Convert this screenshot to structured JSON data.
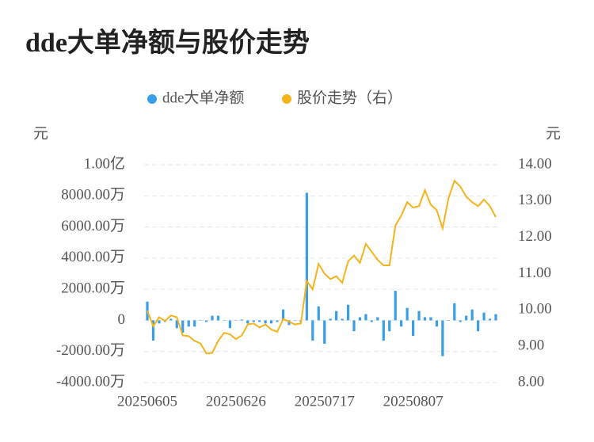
{
  "chart_data": {
    "type": "bar_line",
    "title": "dde大单净额与股价走势",
    "y_label": "元",
    "y2_label": "元",
    "categories": [
      "20250605",
      null,
      null,
      null,
      null,
      null,
      null,
      null,
      null,
      null,
      null,
      null,
      null,
      null,
      null,
      "20250626",
      null,
      null,
      null,
      null,
      null,
      null,
      null,
      null,
      null,
      null,
      null,
      null,
      null,
      null,
      "20250717",
      null,
      null,
      null,
      null,
      null,
      null,
      null,
      null,
      null,
      null,
      null,
      null,
      null,
      null,
      "20250807",
      null,
      null,
      null,
      null,
      null,
      null,
      null,
      null,
      null,
      null,
      null,
      null,
      null,
      null
    ],
    "series": [
      {
        "name": "dde大单净额",
        "color": "#3a9ee6",
        "type": "bar",
        "values": [
          1200,
          -1300,
          -200,
          -100,
          100,
          -500,
          -800,
          -400,
          -400,
          0,
          -100,
          300,
          300,
          0,
          -500,
          0,
          50,
          -200,
          -100,
          -100,
          -200,
          -200,
          -100,
          700,
          -300,
          0,
          -100,
          8200,
          -1300,
          900,
          -1500,
          100,
          600,
          100,
          1000,
          -700,
          200,
          400,
          -100,
          200,
          -1300,
          -700,
          1900,
          -400,
          800,
          -1000,
          600,
          200,
          200,
          -400,
          -2300,
          0,
          1100,
          -100,
          300,
          700,
          -700,
          500,
          100,
          400
        ]
      },
      {
        "name": "股价走势（右）",
        "color": "#f5b31c",
        "type": "line",
        "axis": "y2",
        "values": [
          9.98,
          9.55,
          9.8,
          9.7,
          9.85,
          9.8,
          9.3,
          9.28,
          9.15,
          9.08,
          8.8,
          8.82,
          9.15,
          9.37,
          9.33,
          9.2,
          9.3,
          9.6,
          9.63,
          9.52,
          9.6,
          9.46,
          9.4,
          9.75,
          9.68,
          9.6,
          9.63,
          10.8,
          10.57,
          11.27,
          11.0,
          10.85,
          10.93,
          10.75,
          11.34,
          11.5,
          11.3,
          11.82,
          11.6,
          11.38,
          11.23,
          11.23,
          12.32,
          12.6,
          12.97,
          12.82,
          12.86,
          13.3,
          12.9,
          12.75,
          12.25,
          13.08,
          13.56,
          13.4,
          13.12,
          12.97,
          12.86,
          13.04,
          12.86,
          12.56
        ]
      }
    ],
    "ylim": [
      -4000,
      10000
    ],
    "yticks": [
      {
        "value": -4000,
        "label": "-4000.00万"
      },
      {
        "value": -2000,
        "label": "-2000.00万"
      },
      0,
      {
        "value": 2000,
        "label": "2000.00万"
      },
      {
        "value": 4000,
        "label": "4000.00万"
      },
      {
        "value": 6000,
        "label": "6000.00万"
      },
      {
        "value": 8000,
        "label": "8000.00万"
      },
      {
        "value": 10000,
        "label": "1.00亿"
      }
    ],
    "y2lim": [
      8,
      14
    ],
    "y2ticks": [
      {
        "value": 8,
        "label": "8.00"
      },
      {
        "value": 9,
        "label": "9.00"
      },
      {
        "value": 10,
        "label": "10.00"
      },
      {
        "value": 11,
        "label": "11.00"
      },
      {
        "value": 12,
        "label": "12.00"
      },
      {
        "value": 13,
        "label": "13.00"
      },
      {
        "value": 14,
        "label": "14.00"
      }
    ],
    "grid": true,
    "legend": "top"
  }
}
